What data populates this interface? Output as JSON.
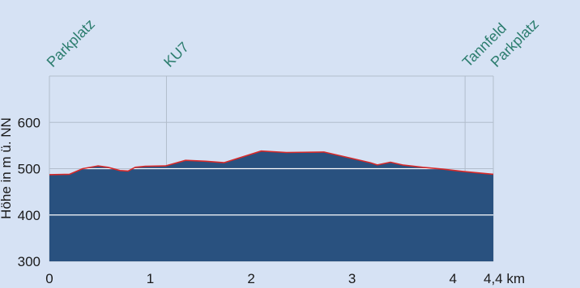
{
  "chart_data": {
    "type": "area",
    "title": "",
    "xlabel": "",
    "ylabel": "Höhe in m ü. NN",
    "x_unit": "km",
    "xlim": [
      0,
      4.4
    ],
    "ylim": [
      300,
      700
    ],
    "x_ticks": [
      {
        "value": 0,
        "label": "0"
      },
      {
        "value": 1,
        "label": "1"
      },
      {
        "value": 2,
        "label": "2"
      },
      {
        "value": 3,
        "label": "3"
      },
      {
        "value": 4,
        "label": "4"
      },
      {
        "value": 4.4,
        "label": "4,4 km"
      }
    ],
    "y_ticks": [
      {
        "value": 300,
        "label": "300"
      },
      {
        "value": 400,
        "label": "400"
      },
      {
        "value": 500,
        "label": "500"
      },
      {
        "value": 600,
        "label": "600"
      }
    ],
    "x": [
      0,
      0.2,
      0.33,
      0.48,
      0.58,
      0.7,
      0.78,
      0.85,
      0.95,
      1.15,
      1.35,
      1.55,
      1.73,
      2.1,
      2.35,
      2.72,
      3.0,
      3.18,
      3.25,
      3.38,
      3.5,
      3.7,
      3.9,
      4.1,
      4.4
    ],
    "values": [
      487,
      488,
      500,
      506,
      503,
      496,
      495,
      503,
      505,
      506,
      518,
      516,
      513,
      538,
      535,
      536,
      522,
      513,
      508,
      514,
      508,
      503,
      499,
      494,
      488
    ],
    "waypoints": [
      {
        "x": 0,
        "label": "Parkplatz"
      },
      {
        "x": 1.16,
        "label": "KU7"
      },
      {
        "x": 4.12,
        "label": "Tannfeld"
      },
      {
        "x": 4.4,
        "label": "Parkplatz"
      }
    ],
    "grid": true,
    "colors": {
      "background": "#d6e2f4",
      "area_fill": "#29517f",
      "profile_line": "#d62a2a",
      "grid": "#b2bdcc",
      "grid_over_area": "#ffffff",
      "waypoint_text": "#2c7d6e",
      "text": "#1a1a1a"
    }
  }
}
